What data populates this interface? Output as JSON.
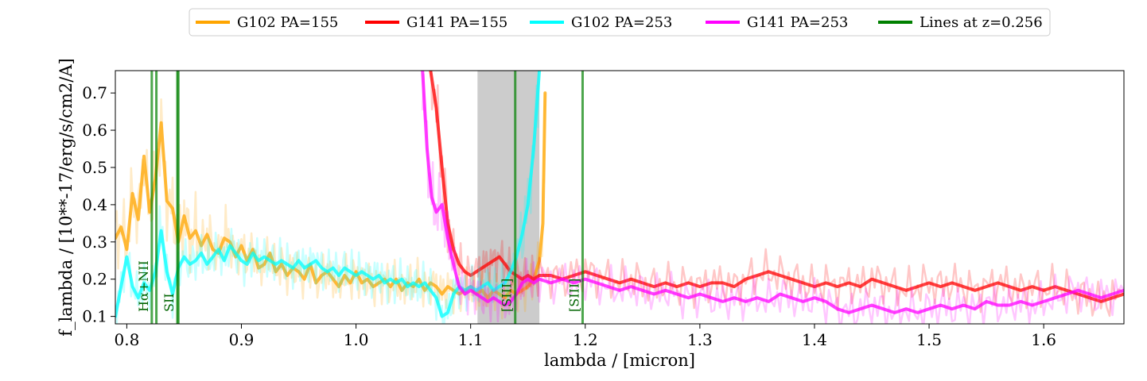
{
  "chart_data": {
    "type": "line",
    "title": "",
    "xlabel": "lambda / [micron]",
    "ylabel": "f_lambda / [10**-17/erg/s/cm2/A]",
    "xlim": [
      0.79,
      1.67
    ],
    "ylim": [
      0.08,
      0.76
    ],
    "x_ticks": [
      {
        "value": 0.8,
        "label": "0.8"
      },
      {
        "value": 0.9,
        "label": "0.9"
      },
      {
        "value": 1.0,
        "label": "1.0"
      },
      {
        "value": 1.1,
        "label": "1.1"
      },
      {
        "value": 1.2,
        "label": "1.2"
      },
      {
        "value": 1.3,
        "label": "1.3"
      },
      {
        "value": 1.4,
        "label": "1.4"
      },
      {
        "value": 1.5,
        "label": "1.5"
      },
      {
        "value": 1.6,
        "label": "1.6"
      }
    ],
    "y_ticks": [
      {
        "value": 0.1,
        "label": "0.1"
      },
      {
        "value": 0.2,
        "label": "0.2"
      },
      {
        "value": 0.3,
        "label": "0.3"
      },
      {
        "value": 0.4,
        "label": "0.4"
      },
      {
        "value": 0.5,
        "label": "0.5"
      },
      {
        "value": 0.6,
        "label": "0.6"
      },
      {
        "value": 0.7,
        "label": "0.7"
      }
    ],
    "grid": false,
    "legend_position": "top-center",
    "legend": [
      {
        "label": "G102 PA=155",
        "color": "#ffa500"
      },
      {
        "label": "G141 PA=155",
        "color": "#ff0000"
      },
      {
        "label": "G102 PA=253",
        "color": "#00ffff"
      },
      {
        "label": "G141 PA=253",
        "color": "#ff00ff"
      },
      {
        "label": "Lines at z=0.256",
        "color": "#008000"
      }
    ],
    "shaded_region": {
      "x0": 1.106,
      "x1": 1.16,
      "color": "#999999"
    },
    "emission_lines": [
      {
        "x": 0.8218,
        "label": "Hα+NII"
      },
      {
        "x": 0.8258,
        "label": ""
      },
      {
        "x": 0.8441,
        "label": "SII"
      },
      {
        "x": 0.845,
        "label": ""
      },
      {
        "x": 1.1389,
        "label": "[SIII]"
      },
      {
        "x": 1.1977,
        "label": "[SIII]"
      }
    ],
    "series": [
      {
        "name": "G102 PA=155",
        "color": "#ffa500",
        "x": [
          0.79,
          0.795,
          0.8,
          0.805,
          0.81,
          0.815,
          0.82,
          0.825,
          0.83,
          0.835,
          0.84,
          0.845,
          0.85,
          0.855,
          0.86,
          0.865,
          0.87,
          0.875,
          0.88,
          0.885,
          0.89,
          0.895,
          0.9,
          0.905,
          0.91,
          0.915,
          0.92,
          0.925,
          0.93,
          0.935,
          0.94,
          0.945,
          0.95,
          0.955,
          0.96,
          0.965,
          0.97,
          0.975,
          0.98,
          0.985,
          0.99,
          0.995,
          1.0,
          1.005,
          1.01,
          1.015,
          1.02,
          1.025,
          1.03,
          1.035,
          1.04,
          1.045,
          1.05,
          1.055,
          1.06,
          1.065,
          1.07,
          1.075,
          1.08,
          1.085,
          1.09,
          1.095,
          1.1,
          1.105,
          1.11,
          1.115,
          1.12,
          1.125,
          1.13,
          1.135,
          1.14,
          1.145,
          1.15,
          1.155,
          1.16,
          1.163,
          1.165
        ],
        "y": [
          0.31,
          0.34,
          0.28,
          0.43,
          0.36,
          0.53,
          0.38,
          0.47,
          0.62,
          0.41,
          0.39,
          0.3,
          0.37,
          0.31,
          0.33,
          0.29,
          0.32,
          0.28,
          0.27,
          0.31,
          0.3,
          0.26,
          0.29,
          0.25,
          0.28,
          0.23,
          0.24,
          0.27,
          0.22,
          0.24,
          0.21,
          0.23,
          0.22,
          0.2,
          0.24,
          0.19,
          0.21,
          0.22,
          0.2,
          0.18,
          0.21,
          0.19,
          0.22,
          0.19,
          0.2,
          0.18,
          0.19,
          0.2,
          0.18,
          0.2,
          0.17,
          0.19,
          0.18,
          0.2,
          0.17,
          0.19,
          0.18,
          0.16,
          0.18,
          0.17,
          0.16,
          0.17,
          0.18,
          0.16,
          0.17,
          0.15,
          0.17,
          0.16,
          0.15,
          0.17,
          0.16,
          0.17,
          0.18,
          0.2,
          0.25,
          0.35,
          0.7
        ]
      },
      {
        "name": "G141 PA=155",
        "color": "#ff0000",
        "x": [
          1.065,
          1.07,
          1.075,
          1.08,
          1.085,
          1.09,
          1.095,
          1.1,
          1.105,
          1.11,
          1.115,
          1.12,
          1.125,
          1.13,
          1.135,
          1.14,
          1.145,
          1.15,
          1.155,
          1.16,
          1.17,
          1.18,
          1.19,
          1.2,
          1.21,
          1.22,
          1.23,
          1.24,
          1.25,
          1.26,
          1.27,
          1.28,
          1.29,
          1.3,
          1.31,
          1.32,
          1.33,
          1.34,
          1.35,
          1.36,
          1.37,
          1.38,
          1.39,
          1.4,
          1.41,
          1.42,
          1.43,
          1.44,
          1.45,
          1.46,
          1.47,
          1.48,
          1.49,
          1.5,
          1.51,
          1.52,
          1.53,
          1.54,
          1.55,
          1.56,
          1.57,
          1.58,
          1.59,
          1.6,
          1.61,
          1.62,
          1.63,
          1.64,
          1.65,
          1.66,
          1.67
        ],
        "y": [
          0.76,
          0.66,
          0.5,
          0.35,
          0.28,
          0.24,
          0.22,
          0.21,
          0.22,
          0.23,
          0.24,
          0.25,
          0.26,
          0.24,
          0.22,
          0.21,
          0.2,
          0.21,
          0.2,
          0.21,
          0.21,
          0.2,
          0.21,
          0.22,
          0.21,
          0.2,
          0.19,
          0.2,
          0.19,
          0.18,
          0.19,
          0.18,
          0.19,
          0.18,
          0.19,
          0.19,
          0.18,
          0.2,
          0.21,
          0.22,
          0.21,
          0.2,
          0.19,
          0.18,
          0.19,
          0.18,
          0.19,
          0.18,
          0.2,
          0.19,
          0.18,
          0.17,
          0.18,
          0.19,
          0.18,
          0.19,
          0.18,
          0.17,
          0.18,
          0.19,
          0.18,
          0.17,
          0.18,
          0.17,
          0.18,
          0.17,
          0.16,
          0.15,
          0.14,
          0.15,
          0.16
        ]
      },
      {
        "name": "G102 PA=253",
        "color": "#00ffff",
        "x": [
          0.79,
          0.795,
          0.8,
          0.805,
          0.81,
          0.815,
          0.82,
          0.825,
          0.83,
          0.835,
          0.84,
          0.845,
          0.85,
          0.855,
          0.86,
          0.865,
          0.87,
          0.875,
          0.88,
          0.885,
          0.89,
          0.895,
          0.9,
          0.905,
          0.91,
          0.915,
          0.92,
          0.925,
          0.93,
          0.935,
          0.94,
          0.945,
          0.95,
          0.955,
          0.96,
          0.965,
          0.97,
          0.975,
          0.98,
          0.985,
          0.99,
          0.995,
          1.0,
          1.005,
          1.01,
          1.015,
          1.02,
          1.025,
          1.03,
          1.035,
          1.04,
          1.045,
          1.05,
          1.055,
          1.06,
          1.065,
          1.07,
          1.075,
          1.08,
          1.085,
          1.09,
          1.095,
          1.1,
          1.105,
          1.11,
          1.115,
          1.12,
          1.125,
          1.13,
          1.135,
          1.14,
          1.145,
          1.15,
          1.155,
          1.16
        ],
        "y": [
          0.1,
          0.18,
          0.26,
          0.18,
          0.15,
          0.19,
          0.17,
          0.22,
          0.33,
          0.22,
          0.16,
          0.23,
          0.26,
          0.24,
          0.25,
          0.27,
          0.24,
          0.26,
          0.28,
          0.25,
          0.29,
          0.27,
          0.25,
          0.24,
          0.27,
          0.25,
          0.26,
          0.25,
          0.24,
          0.25,
          0.24,
          0.23,
          0.25,
          0.23,
          0.24,
          0.25,
          0.23,
          0.22,
          0.23,
          0.21,
          0.23,
          0.22,
          0.21,
          0.22,
          0.21,
          0.2,
          0.21,
          0.19,
          0.2,
          0.19,
          0.2,
          0.18,
          0.19,
          0.18,
          0.19,
          0.17,
          0.15,
          0.1,
          0.11,
          0.16,
          0.18,
          0.17,
          0.18,
          0.17,
          0.18,
          0.19,
          0.17,
          0.18,
          0.19,
          0.22,
          0.26,
          0.32,
          0.4,
          0.55,
          0.76
        ]
      },
      {
        "name": "G141 PA=253",
        "color": "#ff00ff",
        "x": [
          1.058,
          1.062,
          1.066,
          1.07,
          1.075,
          1.08,
          1.085,
          1.09,
          1.095,
          1.1,
          1.105,
          1.11,
          1.115,
          1.12,
          1.125,
          1.13,
          1.135,
          1.14,
          1.145,
          1.15,
          1.155,
          1.16,
          1.17,
          1.18,
          1.19,
          1.2,
          1.21,
          1.22,
          1.23,
          1.24,
          1.25,
          1.26,
          1.27,
          1.28,
          1.29,
          1.3,
          1.31,
          1.32,
          1.33,
          1.34,
          1.35,
          1.36,
          1.37,
          1.38,
          1.39,
          1.4,
          1.41,
          1.42,
          1.43,
          1.44,
          1.45,
          1.46,
          1.47,
          1.48,
          1.49,
          1.5,
          1.51,
          1.52,
          1.53,
          1.54,
          1.55,
          1.56,
          1.57,
          1.58,
          1.59,
          1.6,
          1.61,
          1.62,
          1.63,
          1.64,
          1.65,
          1.66,
          1.67
        ],
        "y": [
          0.76,
          0.55,
          0.42,
          0.38,
          0.4,
          0.31,
          0.24,
          0.18,
          0.16,
          0.17,
          0.16,
          0.15,
          0.14,
          0.15,
          0.14,
          0.13,
          0.14,
          0.16,
          0.19,
          0.2,
          0.19,
          0.2,
          0.19,
          0.2,
          0.19,
          0.2,
          0.19,
          0.18,
          0.17,
          0.18,
          0.17,
          0.16,
          0.17,
          0.16,
          0.15,
          0.16,
          0.15,
          0.14,
          0.15,
          0.14,
          0.15,
          0.14,
          0.16,
          0.15,
          0.14,
          0.15,
          0.14,
          0.12,
          0.11,
          0.12,
          0.13,
          0.12,
          0.11,
          0.12,
          0.11,
          0.12,
          0.13,
          0.12,
          0.13,
          0.12,
          0.14,
          0.13,
          0.13,
          0.14,
          0.13,
          0.14,
          0.15,
          0.16,
          0.17,
          0.16,
          0.15,
          0.16,
          0.17
        ]
      }
    ]
  }
}
